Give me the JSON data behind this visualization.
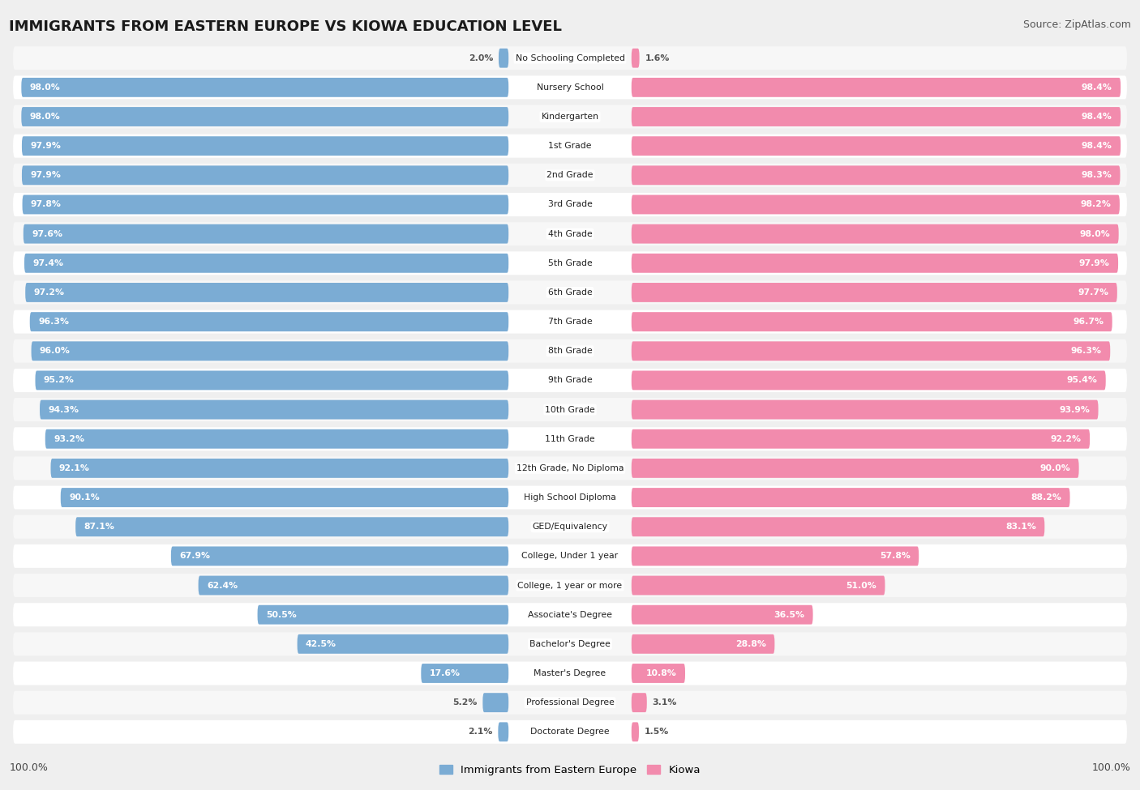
{
  "title": "IMMIGRANTS FROM EASTERN EUROPE VS KIOWA EDUCATION LEVEL",
  "source": "Source: ZipAtlas.com",
  "categories": [
    "No Schooling Completed",
    "Nursery School",
    "Kindergarten",
    "1st Grade",
    "2nd Grade",
    "3rd Grade",
    "4th Grade",
    "5th Grade",
    "6th Grade",
    "7th Grade",
    "8th Grade",
    "9th Grade",
    "10th Grade",
    "11th Grade",
    "12th Grade, No Diploma",
    "High School Diploma",
    "GED/Equivalency",
    "College, Under 1 year",
    "College, 1 year or more",
    "Associate's Degree",
    "Bachelor's Degree",
    "Master's Degree",
    "Professional Degree",
    "Doctorate Degree"
  ],
  "eastern_europe": [
    2.0,
    98.0,
    98.0,
    97.9,
    97.9,
    97.8,
    97.6,
    97.4,
    97.2,
    96.3,
    96.0,
    95.2,
    94.3,
    93.2,
    92.1,
    90.1,
    87.1,
    67.9,
    62.4,
    50.5,
    42.5,
    17.6,
    5.2,
    2.1
  ],
  "kiowa": [
    1.6,
    98.4,
    98.4,
    98.4,
    98.3,
    98.2,
    98.0,
    97.9,
    97.7,
    96.7,
    96.3,
    95.4,
    93.9,
    92.2,
    90.0,
    88.2,
    83.1,
    57.8,
    51.0,
    36.5,
    28.8,
    10.8,
    3.1,
    1.5
  ],
  "blue_color": "#7bacd4",
  "pink_color": "#f28bad",
  "bg_color": "#efefef",
  "row_bg_odd": "#f7f7f7",
  "row_bg_even": "#ffffff",
  "legend_blue": "Immigrants from Eastern Europe",
  "legend_pink": "Kiowa",
  "label_color_inside": "#ffffff",
  "label_color_outside": "#555555",
  "cat_label_fontsize": 7.8,
  "val_label_fontsize": 7.8,
  "title_fontsize": 13,
  "source_fontsize": 9
}
